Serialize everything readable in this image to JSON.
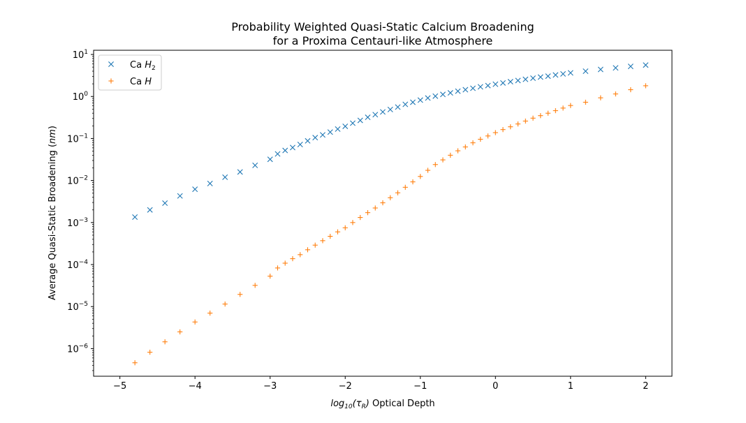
{
  "chart_data": {
    "type": "scatter",
    "title_lines": [
      "Probability Weighted Quasi-Static Calcium Broadening",
      "for a Proxima Centauri-like Atmosphere"
    ],
    "xlabel": {
      "base": "log",
      "sub1": "10",
      "paren_open": "(",
      "tau": "τ",
      "sub2": "R",
      "paren_close": ")",
      "rest": " Optical Depth"
    },
    "ylabel": {
      "text": "Average Quasi-Static Broadening (",
      "unit": "nm",
      "close": ")"
    },
    "x_range": [
      -5.35,
      2.35
    ],
    "y_scale": "log",
    "y_range": [
      2.2e-07,
      12.6
    ],
    "x_ticks": [
      {
        "value": -5,
        "label": "−5"
      },
      {
        "value": -4,
        "label": "−4"
      },
      {
        "value": -3,
        "label": "−3"
      },
      {
        "value": -2,
        "label": "−2"
      },
      {
        "value": -1,
        "label": "−1"
      },
      {
        "value": 0,
        "label": "0"
      },
      {
        "value": 1,
        "label": "1"
      },
      {
        "value": 2,
        "label": "2"
      }
    ],
    "y_ticks": [
      {
        "value": 1e-06,
        "base": "10",
        "exp": "−6"
      },
      {
        "value": 1e-05,
        "base": "10",
        "exp": "−5"
      },
      {
        "value": 0.0001,
        "base": "10",
        "exp": "−4"
      },
      {
        "value": 0.001,
        "base": "10",
        "exp": "−3"
      },
      {
        "value": 0.01,
        "base": "10",
        "exp": "−2"
      },
      {
        "value": 0.1,
        "base": "10",
        "exp": "−1"
      },
      {
        "value": 1,
        "base": "10",
        "exp": "0"
      },
      {
        "value": 10,
        "base": "10",
        "exp": "1"
      }
    ],
    "legend": {
      "position": "upper-left"
    },
    "series": [
      {
        "name": "Ca H2",
        "legend_main": "Ca ",
        "legend_italic": "H",
        "legend_sub": "2",
        "marker": "x",
        "color": "#1f77b4",
        "points": [
          [
            -4.8,
            0.00135
          ],
          [
            -4.6,
            0.002
          ],
          [
            -4.4,
            0.0029
          ],
          [
            -4.2,
            0.0043
          ],
          [
            -4.0,
            0.0062
          ],
          [
            -3.8,
            0.0085
          ],
          [
            -3.6,
            0.012
          ],
          [
            -3.4,
            0.016
          ],
          [
            -3.2,
            0.023
          ],
          [
            -3.0,
            0.032
          ],
          [
            -2.9,
            0.043
          ],
          [
            -2.8,
            0.052
          ],
          [
            -2.7,
            0.061
          ],
          [
            -2.6,
            0.072
          ],
          [
            -2.5,
            0.088
          ],
          [
            -2.4,
            0.105
          ],
          [
            -2.3,
            0.122
          ],
          [
            -2.2,
            0.142
          ],
          [
            -2.1,
            0.168
          ],
          [
            -2.0,
            0.195
          ],
          [
            -1.9,
            0.232
          ],
          [
            -1.8,
            0.27
          ],
          [
            -1.7,
            0.32
          ],
          [
            -1.6,
            0.37
          ],
          [
            -1.5,
            0.43
          ],
          [
            -1.4,
            0.49
          ],
          [
            -1.3,
            0.56
          ],
          [
            -1.2,
            0.65
          ],
          [
            -1.1,
            0.73
          ],
          [
            -1.0,
            0.82
          ],
          [
            -0.9,
            0.92
          ],
          [
            -0.8,
            1.02
          ],
          [
            -0.7,
            1.12
          ],
          [
            -0.6,
            1.22
          ],
          [
            -0.5,
            1.34
          ],
          [
            -0.4,
            1.45
          ],
          [
            -0.3,
            1.57
          ],
          [
            -0.2,
            1.7
          ],
          [
            -0.1,
            1.82
          ],
          [
            0.0,
            1.96
          ],
          [
            0.1,
            2.1
          ],
          [
            0.2,
            2.25
          ],
          [
            0.3,
            2.4
          ],
          [
            0.4,
            2.56
          ],
          [
            0.5,
            2.73
          ],
          [
            0.6,
            2.9
          ],
          [
            0.7,
            3.05
          ],
          [
            0.8,
            3.25
          ],
          [
            0.9,
            3.45
          ],
          [
            1.0,
            3.65
          ],
          [
            1.2,
            4.0
          ],
          [
            1.4,
            4.4
          ],
          [
            1.6,
            4.8
          ],
          [
            1.8,
            5.2
          ],
          [
            2.0,
            5.6
          ]
        ]
      },
      {
        "name": "Ca H",
        "legend_main": "Ca ",
        "legend_italic": "H",
        "legend_sub": "",
        "marker": "+",
        "color": "#ff7f0e",
        "points": [
          [
            -4.8,
            4.6e-07
          ],
          [
            -4.6,
            8.2e-07
          ],
          [
            -4.4,
            1.45e-06
          ],
          [
            -4.2,
            2.5e-06
          ],
          [
            -4.0,
            4.3e-06
          ],
          [
            -3.8,
            7e-06
          ],
          [
            -3.6,
            1.15e-05
          ],
          [
            -3.4,
            1.95e-05
          ],
          [
            -3.2,
            3.2e-05
          ],
          [
            -3.0,
            5.3e-05
          ],
          [
            -2.9,
            8.3e-05
          ],
          [
            -2.8,
            0.000108
          ],
          [
            -2.7,
            0.000138
          ],
          [
            -2.6,
            0.000172
          ],
          [
            -2.5,
            0.000225
          ],
          [
            -2.4,
            0.00029
          ],
          [
            -2.3,
            0.00037
          ],
          [
            -2.2,
            0.00047
          ],
          [
            -2.1,
            0.0006
          ],
          [
            -2.0,
            0.00075
          ],
          [
            -1.9,
            0.001
          ],
          [
            -1.8,
            0.00132
          ],
          [
            -1.7,
            0.00172
          ],
          [
            -1.6,
            0.00222
          ],
          [
            -1.5,
            0.00295
          ],
          [
            -1.4,
            0.0039
          ],
          [
            -1.3,
            0.0051
          ],
          [
            -1.2,
            0.0069
          ],
          [
            -1.1,
            0.0093
          ],
          [
            -1.0,
            0.0125
          ],
          [
            -0.9,
            0.0175
          ],
          [
            -0.8,
            0.024
          ],
          [
            -0.7,
            0.031
          ],
          [
            -0.6,
            0.04
          ],
          [
            -0.5,
            0.051
          ],
          [
            -0.4,
            0.063
          ],
          [
            -0.3,
            0.079
          ],
          [
            -0.2,
            0.096
          ],
          [
            -0.1,
            0.115
          ],
          [
            0.0,
            0.138
          ],
          [
            0.1,
            0.163
          ],
          [
            0.2,
            0.19
          ],
          [
            0.3,
            0.222
          ],
          [
            0.4,
            0.26
          ],
          [
            0.5,
            0.305
          ],
          [
            0.6,
            0.35
          ],
          [
            0.7,
            0.4
          ],
          [
            0.8,
            0.46
          ],
          [
            0.9,
            0.53
          ],
          [
            1.0,
            0.61
          ],
          [
            1.2,
            0.73
          ],
          [
            1.4,
            0.93
          ],
          [
            1.6,
            1.15
          ],
          [
            1.8,
            1.45
          ],
          [
            2.0,
            1.8
          ]
        ]
      }
    ]
  }
}
